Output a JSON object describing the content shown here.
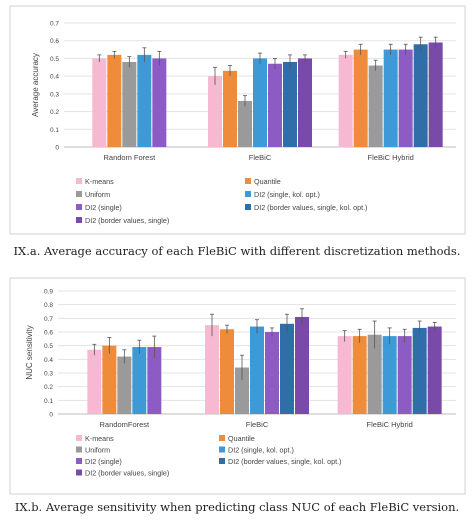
{
  "colors": {
    "K-means": "#f7b8d2",
    "Quantile": "#ef8c3c",
    "Uniform": "#9a9a9a",
    "DI2 (single, kol. opt.)": "#3d9ad6",
    "DI2 (single)": "#8c5cc4",
    "DI2 (border values, single, kol. opt.)": "#2f6ea8",
    "DI2 (border values, single)": "#7a4aa8"
  },
  "captions": {
    "a": "IX.a. Average accuracy of each FleBiC with different discretization methods.",
    "b": "IX.b. Average sensitivity when predicting class NUC of each FleBiC version."
  },
  "chart_data": [
    {
      "type": "bar",
      "title": "",
      "xlabel": "",
      "ylabel": "Average accuracy",
      "ylim": [
        0,
        0.7
      ],
      "yticks": [
        "0",
        "0.1",
        "0.2",
        "0.3",
        "0.4",
        "0.5",
        "0.6",
        "0.7"
      ],
      "grid": true,
      "legend_position": "bottom",
      "categories": [
        "Random Forest",
        "FleBiC",
        "FleBiC Hybrid"
      ],
      "series": [
        {
          "name": "K-means",
          "values": [
            0.5,
            0.4,
            0.52
          ],
          "errors": [
            0.02,
            0.05,
            0.02
          ]
        },
        {
          "name": "Quantile",
          "values": [
            0.52,
            0.43,
            0.55
          ],
          "errors": [
            0.02,
            0.03,
            0.03
          ]
        },
        {
          "name": "Uniform",
          "values": [
            0.48,
            0.26,
            0.46
          ],
          "errors": [
            0.03,
            0.03,
            0.03
          ]
        },
        {
          "name": "DI2 (single, kol. opt.)",
          "values": [
            0.52,
            0.5,
            0.55
          ],
          "errors": [
            0.04,
            0.03,
            0.03
          ]
        },
        {
          "name": "DI2 (single)",
          "values": [
            0.5,
            0.47,
            0.55
          ],
          "errors": [
            0.04,
            0.03,
            0.03
          ]
        },
        {
          "name": "DI2 (border values, single, kol. opt.)",
          "values": [
            null,
            0.48,
            0.58
          ],
          "errors": [
            null,
            0.04,
            0.04
          ]
        },
        {
          "name": "DI2 (border values, single)",
          "values": [
            null,
            0.5,
            0.59
          ],
          "errors": [
            null,
            0.02,
            0.03
          ]
        }
      ]
    },
    {
      "type": "bar",
      "title": "",
      "xlabel": "",
      "ylabel": "NUC sensitivity",
      "ylim": [
        0,
        0.9
      ],
      "yticks": [
        "0",
        "0.1",
        "0.2",
        "0.3",
        "0.4",
        "0.5",
        "0.6",
        "0.7",
        "0.8",
        "0.9"
      ],
      "grid": true,
      "legend_position": "bottom",
      "categories": [
        "RandomForest",
        "FleBiC",
        "FleBiC Hybrid"
      ],
      "series": [
        {
          "name": "K-means",
          "values": [
            0.47,
            0.65,
            0.57
          ],
          "errors": [
            0.04,
            0.08,
            0.04
          ]
        },
        {
          "name": "Quantile",
          "values": [
            0.5,
            0.62,
            0.57
          ],
          "errors": [
            0.06,
            0.03,
            0.05
          ]
        },
        {
          "name": "Uniform",
          "values": [
            0.42,
            0.34,
            0.58
          ],
          "errors": [
            0.05,
            0.09,
            0.1
          ]
        },
        {
          "name": "DI2 (single, kol. opt.)",
          "values": [
            0.49,
            0.64,
            0.57
          ],
          "errors": [
            0.05,
            0.05,
            0.06
          ]
        },
        {
          "name": "DI2 (single)",
          "values": [
            0.49,
            0.6,
            0.57
          ],
          "errors": [
            0.08,
            0.03,
            0.05
          ]
        },
        {
          "name": "DI2 (border values, single, kol. opt.)",
          "values": [
            null,
            0.66,
            0.63
          ],
          "errors": [
            null,
            0.07,
            0.05
          ]
        },
        {
          "name": "DI2 (border values, single)",
          "values": [
            null,
            0.71,
            0.64
          ],
          "errors": [
            null,
            0.06,
            0.03
          ]
        }
      ]
    }
  ]
}
